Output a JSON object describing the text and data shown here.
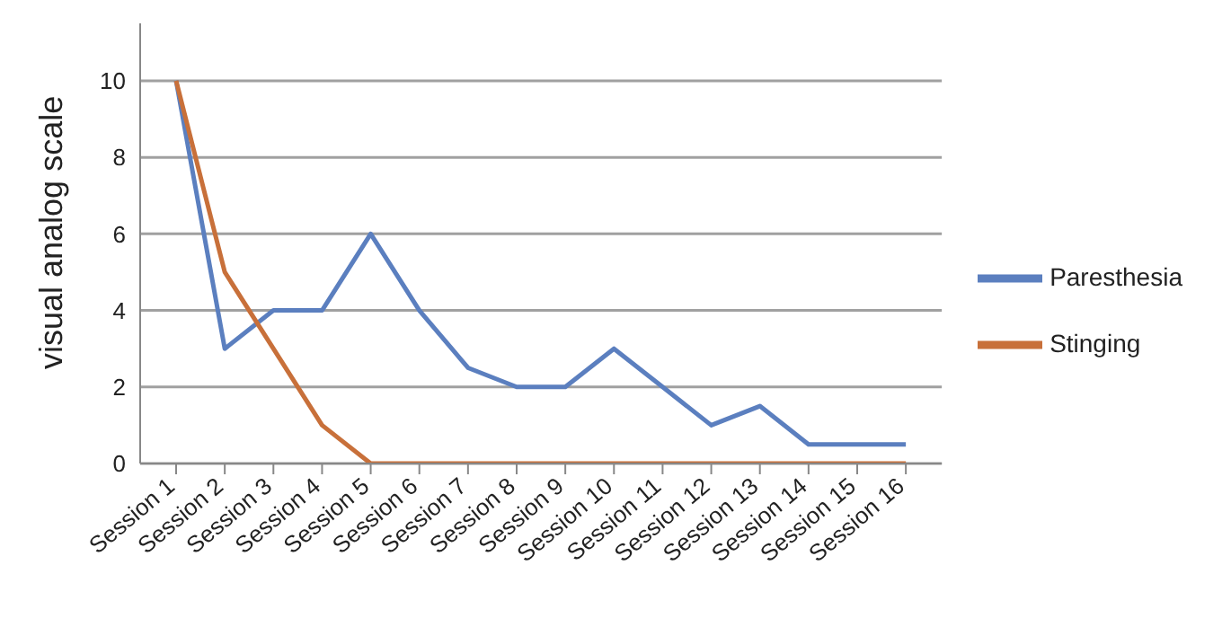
{
  "chart_data": {
    "type": "line",
    "ylabel": "visual analog scale",
    "categories": [
      "Session 1",
      "Session 2",
      "Session 3",
      "Session 4",
      "Session 5",
      "Session 6",
      "Session 7",
      "Session 8",
      "Session 9",
      "Session 10",
      "Session 11",
      "Session 12",
      "Session 13",
      "Session 14",
      "Session 15",
      "Session 16"
    ],
    "series": [
      {
        "name": "Paresthesia",
        "color": "#5b7fbf",
        "values": [
          10,
          3,
          4,
          4,
          6,
          4,
          2.5,
          2,
          2,
          3,
          2,
          1,
          1.5,
          0.5,
          0.5,
          0.5
        ]
      },
      {
        "name": "Stinging",
        "color": "#c8703a",
        "values": [
          10,
          5,
          3,
          1,
          0,
          0,
          0,
          0,
          0,
          0,
          0,
          0,
          0,
          0,
          0,
          0
        ]
      }
    ],
    "ylim": [
      0,
      11.5
    ],
    "yticks": [
      0,
      2,
      4,
      6,
      8,
      10
    ],
    "grid": "y",
    "legend": "right",
    "marker": "none",
    "line_style": "solid"
  }
}
